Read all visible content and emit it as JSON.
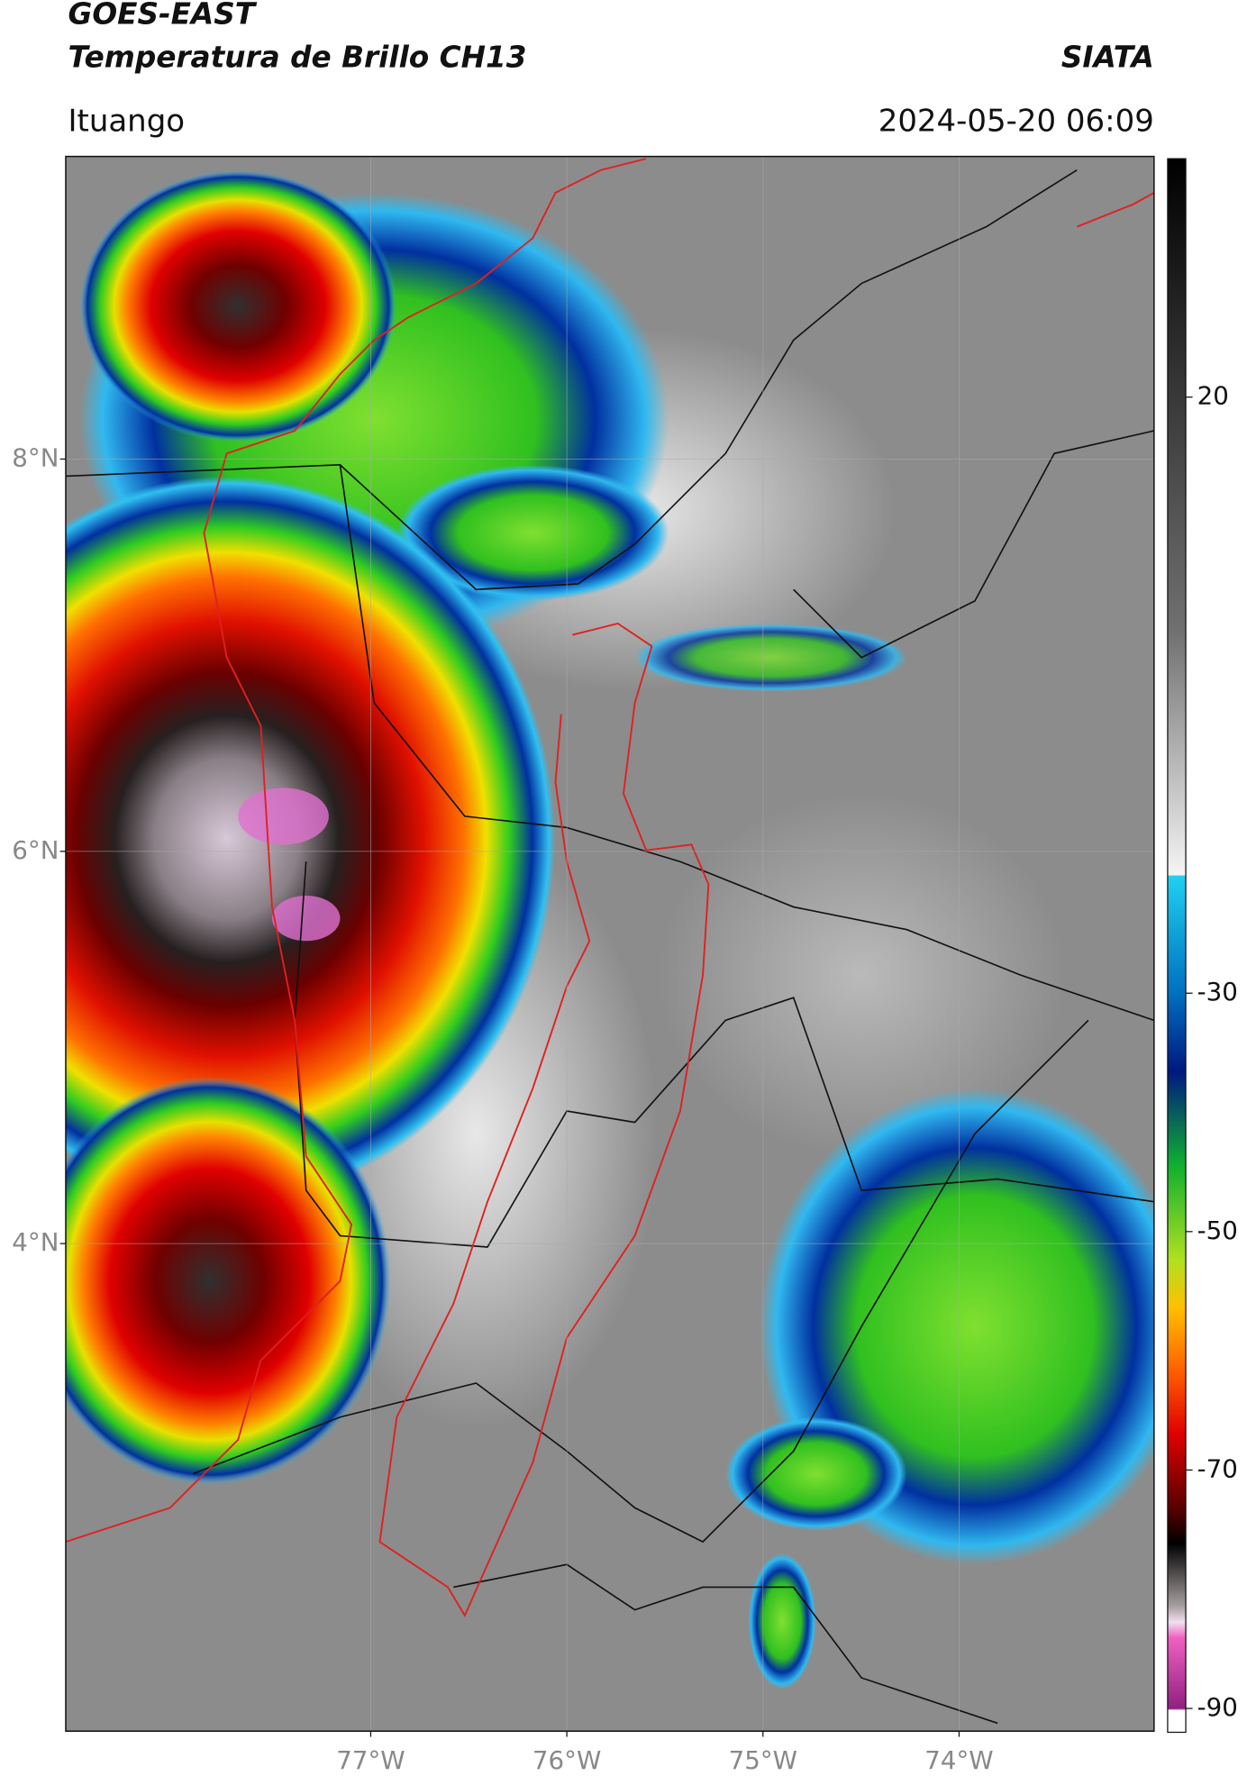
{
  "header": {
    "title": "GOES-EAST",
    "subtitle": "Temperatura de Brillo CH13",
    "source": "SIATA",
    "location": "Ituango",
    "datetime": "2024-05-20 06:09"
  },
  "map": {
    "lonlim": [
      -78.555,
      -73.006
    ],
    "latlim": [
      1.514,
      9.543
    ],
    "lat_ticks": [
      {
        "value": 8,
        "label": "8°N"
      },
      {
        "value": 6,
        "label": "6°N"
      },
      {
        "value": 4,
        "label": "4°N"
      }
    ],
    "lon_ticks": [
      {
        "value": -77,
        "label": "77°W"
      },
      {
        "value": -76,
        "label": "76°W"
      },
      {
        "value": -75,
        "label": "75°W"
      },
      {
        "value": -74,
        "label": "74°W"
      }
    ],
    "grid": true
  },
  "colorbar": {
    "lim": [
      -92,
      40
    ],
    "ticks": [
      20,
      -30,
      -50,
      -70,
      -90
    ]
  }
}
